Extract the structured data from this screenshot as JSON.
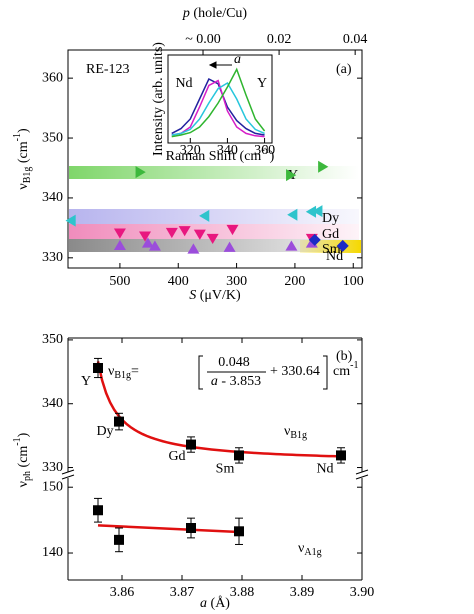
{
  "chart_data": [
    {
      "type": "scatter",
      "annotation": "RE-123",
      "panel_label": "(a)",
      "xlabel": [
        {
          "text": "S",
          "style": "italic"
        },
        {
          "text": " (μV/K)"
        }
      ],
      "x2label": [
        {
          "text": "p",
          "style": "italic"
        },
        {
          "text": " (hole/Cu)"
        }
      ],
      "ylabel": [
        {
          "text": "ν"
        },
        {
          "text": "B1g",
          "style": "sub"
        },
        {
          "text": " (cm"
        },
        {
          "text": "-1",
          "style": "sup"
        },
        {
          "text": ")"
        }
      ],
      "xlim": [
        589,
        85
      ],
      "xticks": [
        500,
        400,
        300,
        200,
        100
      ],
      "x2lim": [
        -0.0355,
        0.0418
      ],
      "x2ticks": [
        {
          "value": 0,
          "label": "~ 0.00"
        },
        0.02,
        0.04
      ],
      "ylim": [
        328.3,
        364.7
      ],
      "yticks": [
        330,
        340,
        350,
        360
      ],
      "series": [
        {
          "name": "Y",
          "color": "#3db83d",
          "marker": "triangle-right",
          "x": [
            466,
            208,
            153
          ],
          "values": [
            344.3,
            343.8,
            345.2
          ]
        },
        {
          "name": "Dy",
          "color": "#2ec4cc",
          "marker": "triangle-left",
          "x": [
            583,
            354,
            203,
            171,
            160
          ],
          "values": [
            336.2,
            337.0,
            337.2,
            337.7,
            337.8
          ]
        },
        {
          "name": "Gd",
          "color": "#e8177f",
          "marker": "triangle-down",
          "x": [
            500,
            457,
            411,
            389,
            363,
            341,
            307,
            171
          ],
          "values": [
            334.2,
            333.7,
            334.3,
            334.6,
            334.0,
            333.3,
            334.8,
            333.3
          ]
        },
        {
          "name": "Sm",
          "color": "#9b4ddb",
          "marker": "triangle-up",
          "x": [
            500,
            452,
            440,
            374,
            312,
            206,
            171
          ],
          "values": [
            332.0,
            332.4,
            331.9,
            331.4,
            331.7,
            331.9,
            332.4
          ]
        },
        {
          "name": "Nd",
          "color": "#1d2bc4",
          "marker": "diamond",
          "x": [
            166,
            118
          ],
          "values": [
            333.0,
            332.0
          ]
        }
      ]
    },
    {
      "type": "line",
      "annotation": "a",
      "xlabel": [
        {
          "text": "Raman Shift (cm"
        },
        {
          "text": "-1",
          "style": "sup"
        },
        {
          "text": ")"
        }
      ],
      "ylabel": [
        {
          "text": "Intensity (arb. units)"
        }
      ],
      "xlim": [
        308,
        364
      ],
      "xticks": [
        320,
        340,
        360
      ],
      "ylim": [
        0,
        1
      ],
      "x": [
        310,
        315,
        320,
        325,
        330,
        335,
        340,
        345,
        350,
        355,
        360
      ],
      "series": [
        {
          "name": "Nd",
          "color": "#22229e",
          "values": [
            0.12,
            0.18,
            0.3,
            0.55,
            0.8,
            0.74,
            0.45,
            0.28,
            0.18,
            0.12,
            0.1
          ]
        },
        {
          "color": "#d61ec8",
          "values": [
            0.1,
            0.12,
            0.2,
            0.45,
            0.72,
            0.78,
            0.4,
            0.2,
            0.12,
            0.09,
            0.08
          ]
        },
        {
          "color": "#27c6dc",
          "values": [
            0.1,
            0.12,
            0.17,
            0.3,
            0.5,
            0.68,
            0.75,
            0.55,
            0.3,
            0.17,
            0.12
          ]
        },
        {
          "name": "Y",
          "color": "#2fb52f",
          "values": [
            0.08,
            0.1,
            0.13,
            0.2,
            0.33,
            0.5,
            0.7,
            0.92,
            0.6,
            0.3,
            0.15
          ]
        }
      ]
    },
    {
      "type": "errorbar",
      "panel_label": "(b)",
      "ylabel": [
        {
          "text": "ν"
        },
        {
          "text": "ph",
          "style": "sub"
        },
        {
          "text": " (cm"
        },
        {
          "text": "-1",
          "style": "sup"
        },
        {
          "text": ")"
        }
      ],
      "xlim": [
        3.851,
        3.9
      ],
      "ylim": [
        329.3,
        350.3
      ],
      "yticks": [
        330,
        340,
        350
      ],
      "categories": [
        "Y",
        "Dy",
        "Gd",
        "Sm",
        "Nd"
      ],
      "x": [
        3.856,
        3.8595,
        3.8715,
        3.8795,
        3.8965
      ],
      "values": [
        345.6,
        337.2,
        333.6,
        331.9,
        331.9
      ],
      "errors": [
        1.5,
        1.3,
        1.2,
        1.2,
        1.2
      ],
      "color": "#000000",
      "fit_color": "#e01010",
      "label": [
        {
          "text": "ν"
        },
        {
          "text": "B1g",
          "style": "sub"
        }
      ],
      "label_color": "#1a2fc8",
      "formula": {
        "lhs": [
          {
            "text": "ν"
          },
          {
            "text": "B1g",
            "style": "sub"
          },
          {
            "text": "="
          }
        ],
        "numerator": 0.048,
        "denominator_parts": [
          {
            "text": "a",
            "style": "italic"
          },
          {
            "text": " - "
          }
        ],
        "a0": 3.853,
        "plus": "+ ",
        "offset": 330.64,
        "unit": [
          {
            "text": "cm"
          },
          {
            "text": "-1",
            "style": "sup"
          }
        ]
      }
    },
    {
      "type": "errorbar",
      "xlabel": [
        {
          "text": "a",
          "style": "italic"
        },
        {
          "text": " (Å)"
        }
      ],
      "xlim": [
        3.851,
        3.9
      ],
      "xticks": [
        3.86,
        3.87,
        3.88,
        3.89,
        {
          "value": 3.9,
          "label": "3.90"
        }
      ],
      "ylim": [
        135.9,
        151.4
      ],
      "yticks": [
        140,
        150
      ],
      "x": [
        3.856,
        3.8595,
        3.8715,
        3.8795
      ],
      "values": [
        146.5,
        142.0,
        143.8,
        143.3
      ],
      "errors": [
        1.8,
        1.8,
        1.5,
        2.0
      ],
      "color": "#000000",
      "fit_color": "#e01010",
      "fit": {
        "x": [
          3.856,
          3.8795
        ],
        "values": [
          144.2,
          143.2
        ]
      },
      "label": [
        {
          "text": "ν"
        },
        {
          "text": "A1g",
          "style": "sub"
        }
      ],
      "label_color": "#1a2fc8"
    }
  ]
}
